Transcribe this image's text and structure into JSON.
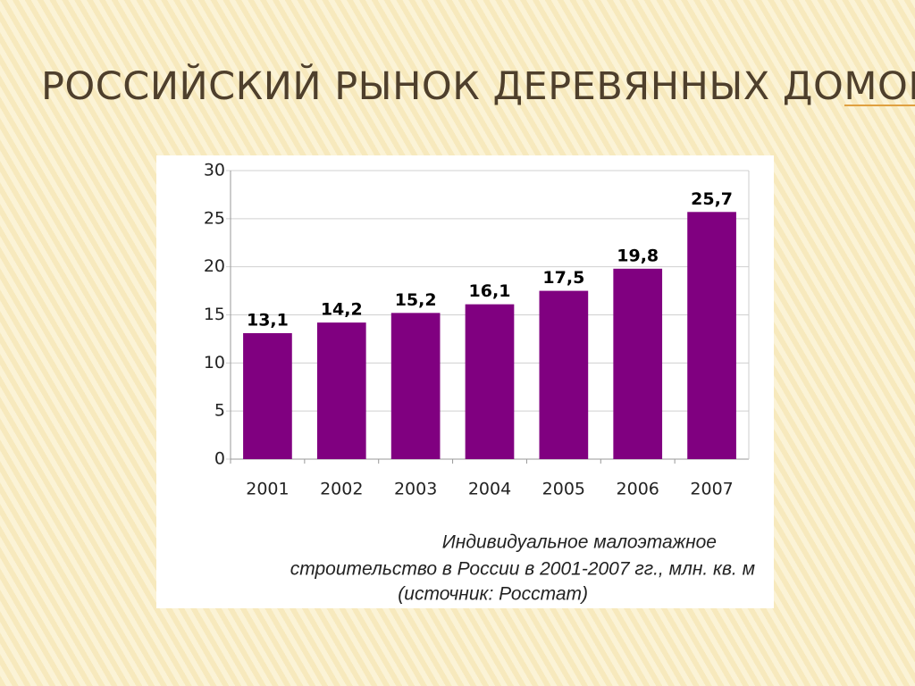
{
  "title": "РОССИЙСКИЙ РЫНОК ДЕРЕВЯННЫХ ДОМОВ",
  "chart_data": {
    "type": "bar",
    "categories": [
      "2001",
      "2002",
      "2003",
      "2004",
      "2005",
      "2006",
      "2007"
    ],
    "values": [
      13.1,
      14.2,
      15.2,
      16.1,
      17.5,
      19.8,
      25.7
    ],
    "value_labels": [
      "13,1",
      "14,2",
      "15,2",
      "16,1",
      "17,5",
      "19,8",
      "25,7"
    ],
    "color": "#800080",
    "ylim": [
      0,
      30
    ],
    "yticks": [
      0,
      5,
      10,
      15,
      20,
      25,
      30
    ],
    "grid": true,
    "caption": [
      "Индивидуальное малоэтажное",
      "строительство в России в 2001-2007 гг., млн. кв. м",
      "(источник: Росстат)"
    ]
  }
}
